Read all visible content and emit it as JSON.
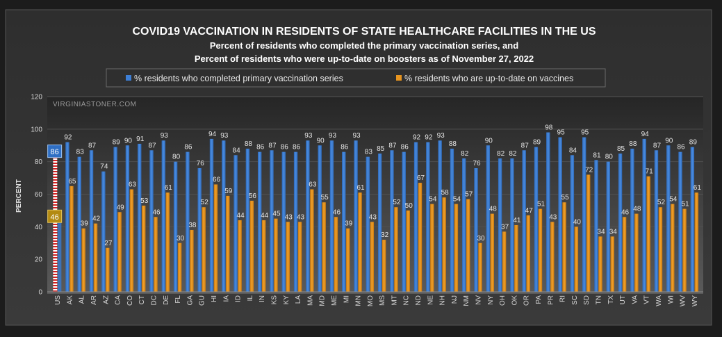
{
  "chart_data": {
    "type": "bar",
    "title": "COVID19 VACCINATION IN RESIDENTS OF STATE HEALTHCARE FACILITIES IN THE US",
    "subtitle_line1": "Percent of residents who completed the primary vaccination series, and",
    "subtitle_line2": "Percent of residents who were up-to-date on boosters as of November 27, 2022",
    "watermark": "VIRGINIASTONER.COM",
    "ylabel": "PERCENT",
    "xlabel": "",
    "ylim": [
      0,
      120
    ],
    "yticks": [
      0,
      20,
      40,
      60,
      80,
      100,
      120
    ],
    "legend_position": "top-center",
    "grid": true,
    "categories": [
      "US",
      "AK",
      "AL",
      "AR",
      "AZ",
      "CA",
      "CO",
      "CT",
      "DC",
      "DE",
      "FL",
      "GA",
      "GU",
      "HI",
      "IA",
      "ID",
      "IL",
      "IN",
      "KS",
      "KY",
      "LA",
      "MA",
      "MD",
      "ME",
      "MI",
      "MN",
      "MO",
      "MS",
      "MT",
      "NC",
      "ND",
      "NE",
      "NH",
      "NJ",
      "NM",
      "NV",
      "NY",
      "OH",
      "OK",
      "OR",
      "PA",
      "PR",
      "RI",
      "SC",
      "SD",
      "TN",
      "TX",
      "UT",
      "VA",
      "VT",
      "WA",
      "WI",
      "WV",
      "WY"
    ],
    "series": [
      {
        "name": "% residents who completed primary vaccination series",
        "color": "#3d7fd6",
        "values": [
          86,
          92,
          83,
          87,
          74,
          89,
          90,
          91,
          87,
          93,
          80,
          86,
          76,
          94,
          93,
          84,
          88,
          86,
          87,
          86,
          86,
          93,
          90,
          93,
          86,
          93,
          83,
          85,
          87,
          86,
          92,
          92,
          93,
          88,
          82,
          76,
          90,
          82,
          82,
          87,
          89,
          98,
          95,
          84,
          95,
          81,
          80,
          85,
          88,
          94,
          87,
          90,
          86,
          89
        ]
      },
      {
        "name": "% residents who are up-to-date on vaccines",
        "color": "#e8951f",
        "values": [
          46,
          65,
          39,
          42,
          27,
          49,
          63,
          53,
          46,
          61,
          30,
          38,
          52,
          66,
          59,
          44,
          56,
          44,
          45,
          43,
          43,
          63,
          55,
          46,
          39,
          61,
          43,
          32,
          52,
          50,
          67,
          54,
          58,
          54,
          57,
          30,
          48,
          37,
          41,
          47,
          51,
          43,
          55,
          40,
          72,
          34,
          34,
          46,
          48,
          71,
          52,
          54,
          51,
          61
        ]
      }
    ],
    "us_highlight": {
      "category": "US",
      "primary_value": 86,
      "booster_value": 46,
      "primary_color": "#2f6fc4",
      "booster_color": "#b38a12"
    }
  }
}
